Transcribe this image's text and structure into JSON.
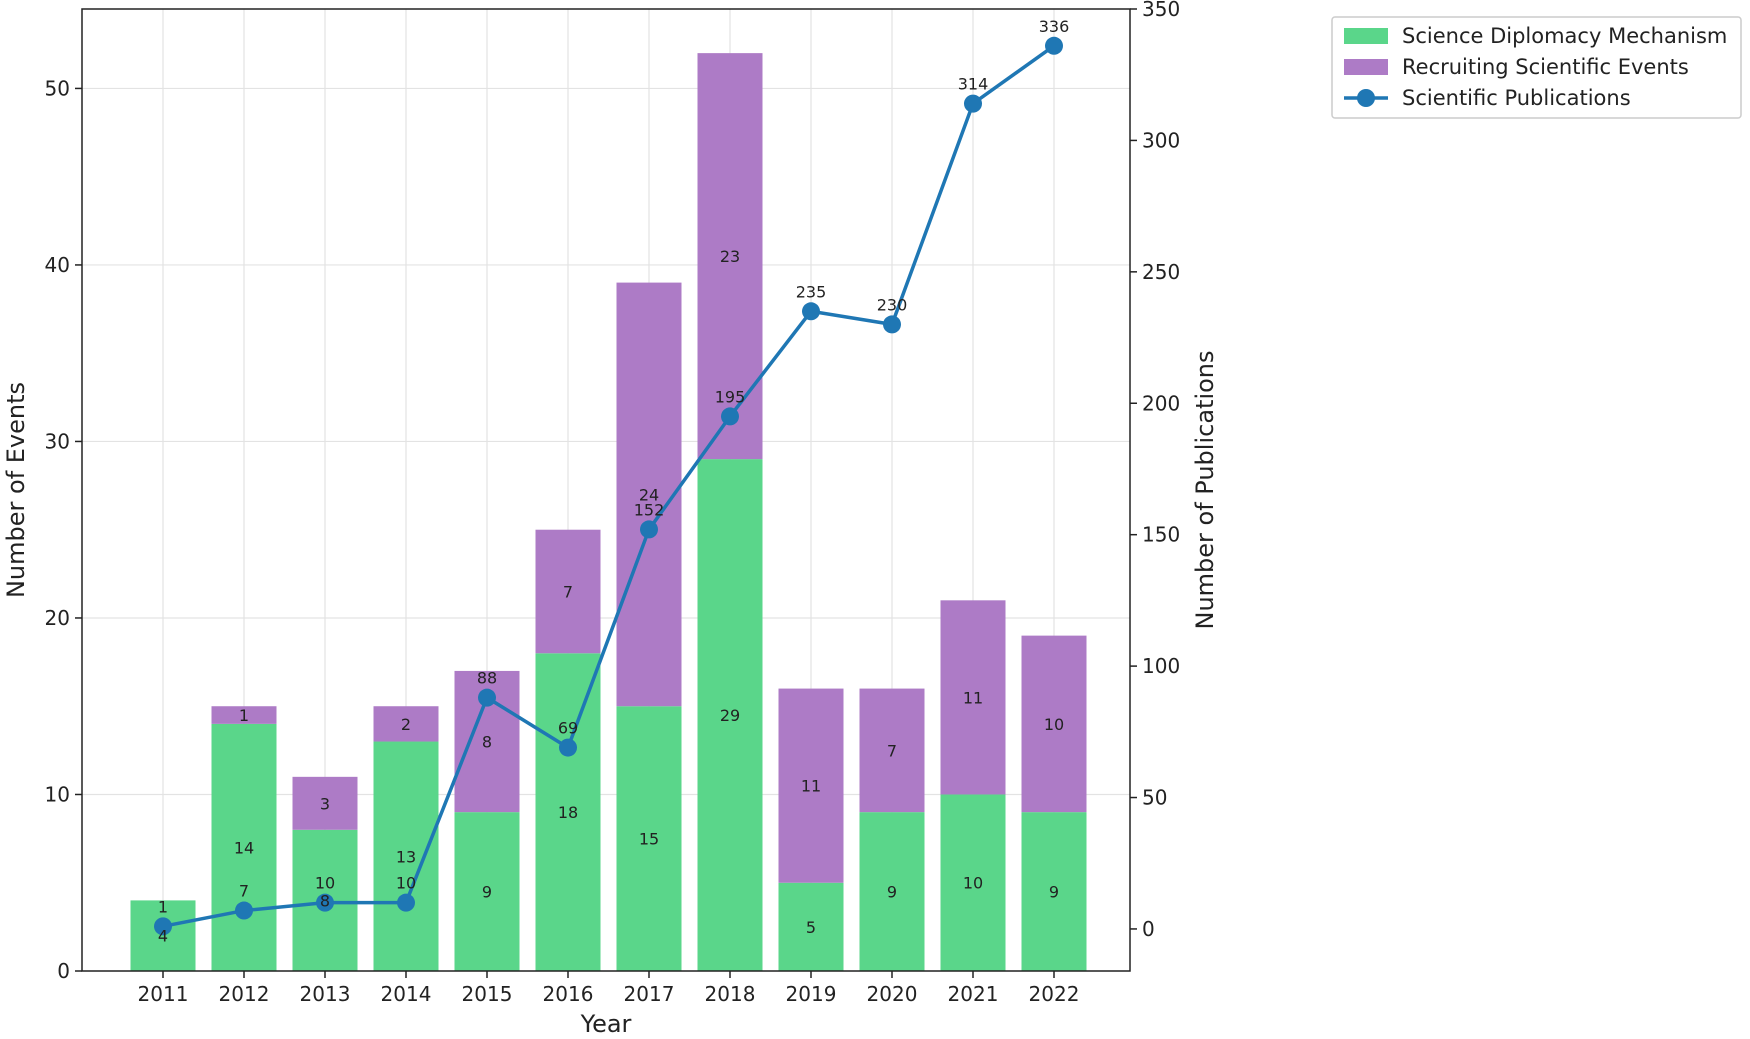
{
  "chart_data": {
    "type": "bar",
    "stacked": true,
    "categories": [
      "2011",
      "2012",
      "2013",
      "2014",
      "2015",
      "2016",
      "2017",
      "2018",
      "2019",
      "2020",
      "2021",
      "2022"
    ],
    "series": [
      {
        "name": "Science Diplomacy Mechanism",
        "type": "bar",
        "axis": "left",
        "color": "#5ad68a",
        "values": [
          4,
          14,
          8,
          13,
          9,
          18,
          15,
          29,
          5,
          9,
          10,
          9
        ]
      },
      {
        "name": "Recruiting Scientific Events",
        "type": "bar",
        "axis": "left",
        "color": "#ad7bc6",
        "values": [
          0,
          1,
          3,
          2,
          8,
          7,
          24,
          23,
          11,
          7,
          11,
          10
        ]
      },
      {
        "name": "Scientific Publications",
        "type": "line",
        "axis": "right",
        "color": "#1f77b4",
        "values": [
          1,
          7,
          10,
          10,
          88,
          69,
          152,
          195,
          235,
          230,
          314,
          336
        ]
      }
    ],
    "bar_labels": [
      [
        "4",
        "14",
        "8",
        "13",
        "9",
        "18",
        "15",
        "29",
        "5",
        "9",
        "10",
        "9"
      ],
      [
        "",
        "1",
        "3",
        "2",
        "8",
        "7",
        "24",
        "23",
        "11",
        "7",
        "11",
        "10"
      ]
    ],
    "xlabel": "Year",
    "ylabel": "Number of Events",
    "y2label": "Number of Publications",
    "ylim": [
      0,
      54.5
    ],
    "y2lim": [
      -16,
      350
    ],
    "yticks": [
      0,
      10,
      20,
      30,
      40,
      50
    ],
    "y2ticks": [
      0,
      50,
      100,
      150,
      200,
      250,
      300,
      350
    ],
    "grid": true,
    "legend_position": "outside-top-right"
  }
}
